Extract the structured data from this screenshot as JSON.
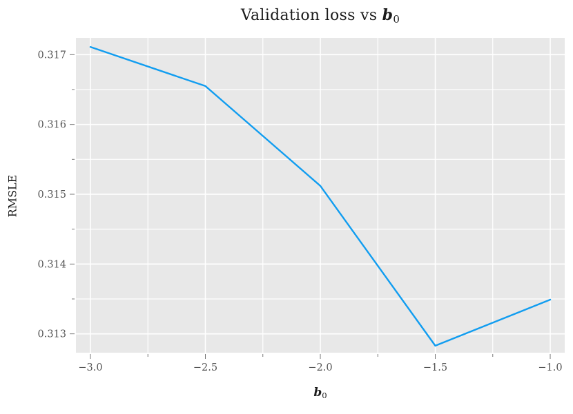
{
  "figure": {
    "title": {
      "prefix": "Validation loss vs ",
      "var": "b",
      "sub": "0"
    },
    "xlabel": {
      "var": "b",
      "sub": "0"
    },
    "ylabel": "RMSLE"
  },
  "chart_data": {
    "type": "line",
    "title": "Validation loss vs b_0",
    "xlabel": "b_0",
    "ylabel": "RMSLE",
    "x": [
      -3.0,
      -2.5,
      -2.0,
      -1.5,
      -1.0
    ],
    "y": [
      0.31711,
      0.31655,
      0.31512,
      0.31283,
      0.31349
    ],
    "xlim": [
      -3.063,
      -0.937
    ],
    "ylim": [
      0.31273,
      0.31724
    ],
    "xticks": [
      -3.0,
      -2.5,
      -2.0,
      -1.5,
      -1.0
    ],
    "xtick_labels": [
      "−3.0",
      "−2.5",
      "−2.0",
      "−1.5",
      "−1.0"
    ],
    "xticks_minor": [
      -2.75,
      -2.25,
      -1.75,
      -1.25
    ],
    "yticks": [
      0.313,
      0.314,
      0.315,
      0.316,
      0.317
    ],
    "ytick_labels": [
      "0.313",
      "0.314",
      "0.315",
      "0.316",
      "0.317"
    ],
    "yticks_minor": [
      0.3135,
      0.3145,
      0.3155,
      0.3165
    ],
    "grid": true,
    "grid_minor": true,
    "legend": "none",
    "colors": {
      "line": "#119DF0",
      "plot_background": "#E8E8E8",
      "gridline": "#FFFFFF",
      "tick": "#777777",
      "tick_label": "#555555",
      "text": "#1C1C1C",
      "figure_background": "#FFFFFF"
    }
  }
}
